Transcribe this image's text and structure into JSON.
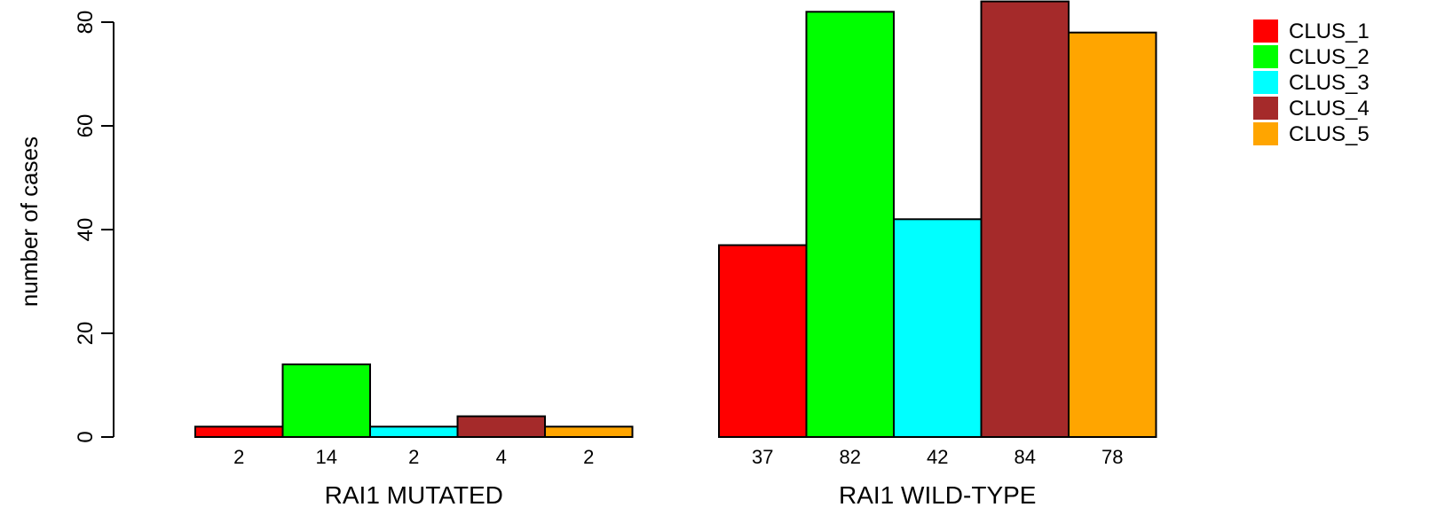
{
  "chart_data": {
    "type": "bar",
    "ylabel": "number of cases",
    "ylim": [
      0,
      85
    ],
    "yticks": [
      0,
      20,
      40,
      60,
      80
    ],
    "grid": false,
    "legend_position": "top-right",
    "groups": [
      {
        "name": "RAI1 MUTATED",
        "values": [
          2,
          14,
          2,
          4,
          2
        ]
      },
      {
        "name": "RAI1 WILD-TYPE",
        "values": [
          37,
          82,
          42,
          84,
          78
        ]
      }
    ],
    "series": [
      {
        "name": "CLUS_1",
        "color": "#ff0000"
      },
      {
        "name": "CLUS_2",
        "color": "#00ff00"
      },
      {
        "name": "CLUS_3",
        "color": "#00ffff"
      },
      {
        "name": "CLUS_4",
        "color": "#a52a2a"
      },
      {
        "name": "CLUS_5",
        "color": "#ffa500"
      }
    ]
  }
}
